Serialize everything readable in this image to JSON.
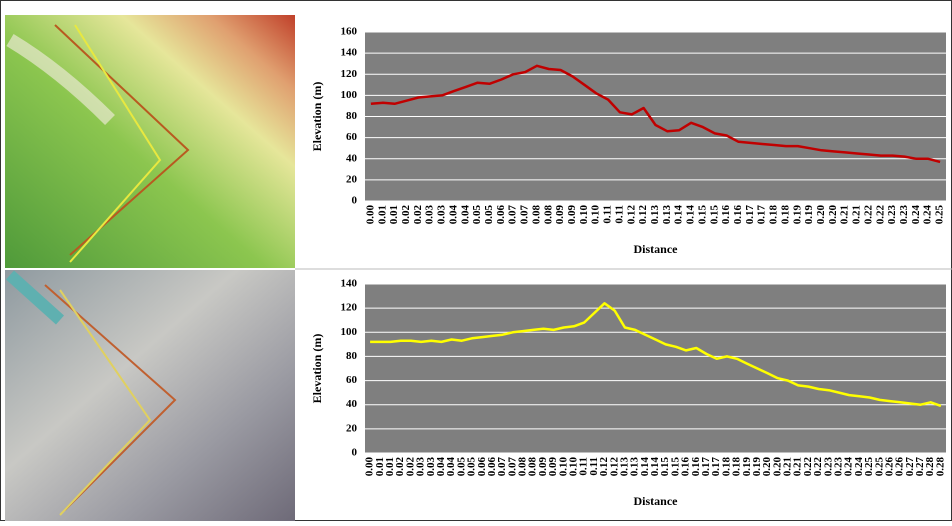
{
  "chart_data": [
    {
      "type": "line",
      "ylabel": "Elevation (m)",
      "xlabel": "Distance",
      "color": "#c00000",
      "grid": true,
      "ylim": [
        0,
        160
      ],
      "yticks": [
        0,
        20,
        40,
        60,
        80,
        100,
        120,
        140,
        160
      ],
      "categories": [
        "0.00",
        "0.01",
        "0.01",
        "0.02",
        "0.02",
        "0.03",
        "0.03",
        "0.04",
        "0.04",
        "0.05",
        "0.05",
        "0.06",
        "0.07",
        "0.07",
        "0.08",
        "0.08",
        "0.09",
        "0.09",
        "0.10",
        "0.10",
        "0.11",
        "0.11",
        "0.12",
        "0.12",
        "0.13",
        "0.13",
        "0.14",
        "0.14",
        "0.15",
        "0.15",
        "0.16",
        "0.16",
        "0.17",
        "0.17",
        "0.18",
        "0.18",
        "0.19",
        "0.19",
        "0.20",
        "0.20",
        "0.21",
        "0.21",
        "0.22",
        "0.22",
        "0.23",
        "0.23",
        "0.24",
        "0.24",
        "0.25"
      ],
      "values": [
        92,
        93,
        92,
        95,
        98,
        99,
        100,
        104,
        108,
        112,
        111,
        115,
        120,
        122,
        128,
        125,
        124,
        118,
        110,
        102,
        96,
        84,
        82,
        88,
        72,
        66,
        67,
        74,
        70,
        64,
        62,
        56,
        55,
        54,
        53,
        52,
        52,
        50,
        48,
        47,
        46,
        45,
        44,
        43,
        43,
        42,
        40,
        40,
        37
      ]
    },
    {
      "type": "line",
      "ylabel": "Elevation (m)",
      "xlabel": "Distance",
      "color": "#ffff00",
      "grid": true,
      "ylim": [
        0,
        140
      ],
      "yticks": [
        0,
        20,
        40,
        60,
        80,
        100,
        120,
        140
      ],
      "categories": [
        "0.00",
        "0.01",
        "0.01",
        "0.02",
        "0.02",
        "0.03",
        "0.03",
        "0.04",
        "0.04",
        "0.05",
        "0.05",
        "0.06",
        "0.06",
        "0.07",
        "0.07",
        "0.08",
        "0.08",
        "0.09",
        "0.09",
        "0.10",
        "0.10",
        "0.11",
        "0.11",
        "0.12",
        "0.12",
        "0.13",
        "0.13",
        "0.14",
        "0.14",
        "0.15",
        "0.15",
        "0.16",
        "0.16",
        "0.17",
        "0.17",
        "0.18",
        "0.18",
        "0.19",
        "0.19",
        "0.20",
        "0.20",
        "0.21",
        "0.21",
        "0.22",
        "0.22",
        "0.23",
        "0.23",
        "0.24",
        "0.24",
        "0.25",
        "0.25",
        "0.26",
        "0.26",
        "0.27",
        "0.27",
        "0.28",
        "0.28"
      ],
      "values": [
        92,
        92,
        92,
        93,
        93,
        92,
        93,
        92,
        94,
        93,
        95,
        96,
        97,
        98,
        100,
        101,
        102,
        103,
        102,
        104,
        105,
        108,
        116,
        124,
        118,
        104,
        102,
        98,
        94,
        90,
        88,
        85,
        87,
        82,
        78,
        80,
        78,
        74,
        70,
        66,
        62,
        60,
        56,
        55,
        53,
        52,
        50,
        48,
        47,
        46,
        44,
        43,
        42,
        41,
        40,
        42,
        39
      ]
    }
  ]
}
